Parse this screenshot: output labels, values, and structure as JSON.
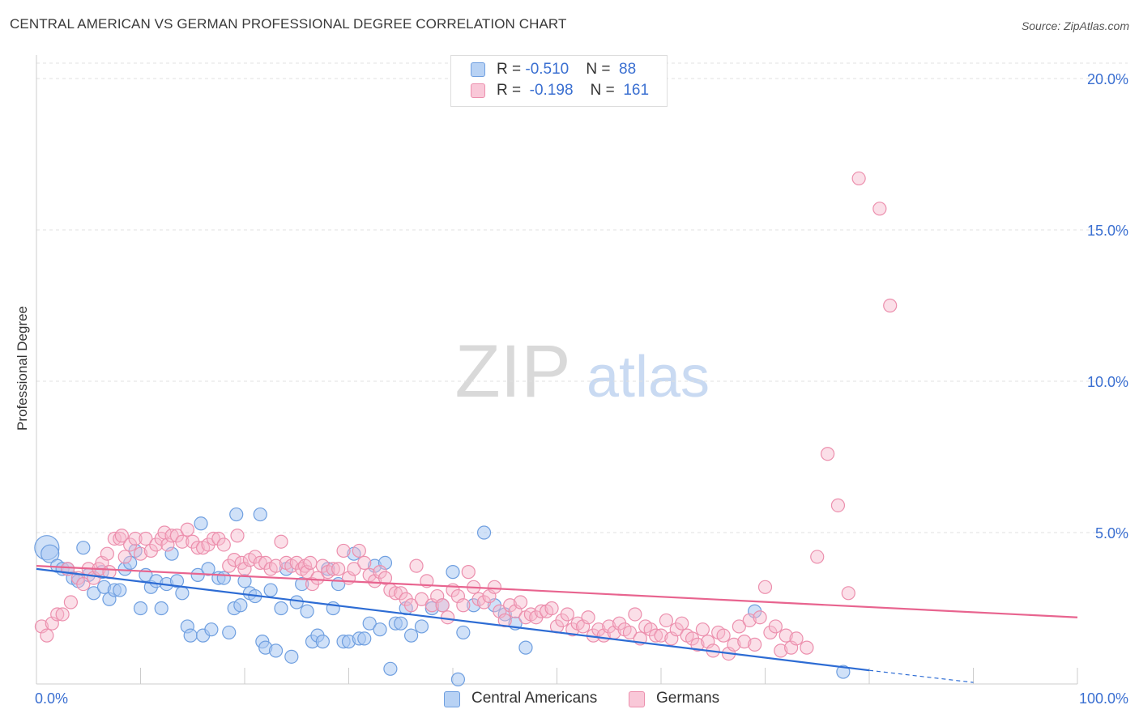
{
  "header": {
    "title": "CENTRAL AMERICAN VS GERMAN PROFESSIONAL DEGREE CORRELATION CHART",
    "source": "Source: ZipAtlas.com"
  },
  "watermark": {
    "zip": "ZIP",
    "atlas": "atlas"
  },
  "legend": {
    "items": [
      {
        "r_label": "R = ",
        "r_value": "-0.510",
        "n_label": "N = ",
        "n_value": "88"
      },
      {
        "r_label": "R = ",
        "r_value": "-0.198",
        "n_label": "N = ",
        "n_value": "161"
      }
    ]
  },
  "colors": {
    "blue_fill": "#a9c8f2",
    "blue_stroke": "#6f9fe0",
    "blue_line": "#2d6cd4",
    "pink_fill": "#f6b9cc",
    "pink_stroke": "#ec8fad",
    "pink_line": "#e8648f",
    "axis_text": "#3a6fd1",
    "grid": "#e0e0e0"
  },
  "chart_data": {
    "type": "scatter",
    "title": "CENTRAL AMERICAN VS GERMAN PROFESSIONAL DEGREE CORRELATION CHART",
    "xlabel": "",
    "ylabel": "Professional Degree",
    "xlim": [
      0,
      100
    ],
    "ylim": [
      0,
      20
    ],
    "x_tick_labels": [
      "0.0%",
      "100.0%"
    ],
    "y_ticks": [
      5,
      10,
      15,
      20
    ],
    "y_tick_labels": [
      "5.0%",
      "10.0%",
      "15.0%",
      "20.0%"
    ],
    "grid": true,
    "legend_position": "bottom",
    "series": [
      {
        "name": "Central Americans",
        "R": -0.51,
        "N": 88,
        "trend": {
          "x": [
            0,
            80
          ],
          "y": [
            3.8,
            0.45
          ]
        },
        "trend_extension": {
          "x": [
            80,
            90
          ],
          "y": [
            0.45,
            0.05
          ]
        },
        "points": [
          [
            1,
            4.5
          ],
          [
            1.3,
            4.3
          ],
          [
            2,
            3.9
          ],
          [
            2.5,
            3.8
          ],
          [
            3,
            3.8
          ],
          [
            3.5,
            3.5
          ],
          [
            4,
            3.4
          ],
          [
            4.5,
            4.5
          ],
          [
            5,
            3.6
          ],
          [
            5.5,
            3.0
          ],
          [
            6.3,
            3.7
          ],
          [
            6.5,
            3.2
          ],
          [
            7,
            2.8
          ],
          [
            7.5,
            3.1
          ],
          [
            8,
            3.1
          ],
          [
            8.5,
            3.8
          ],
          [
            9,
            4.0
          ],
          [
            9.5,
            4.4
          ],
          [
            10,
            2.5
          ],
          [
            10.5,
            3.6
          ],
          [
            11,
            3.2
          ],
          [
            11.5,
            3.4
          ],
          [
            12,
            2.5
          ],
          [
            12.5,
            3.3
          ],
          [
            13,
            4.3
          ],
          [
            13.5,
            3.4
          ],
          [
            14,
            3.0
          ],
          [
            14.5,
            1.9
          ],
          [
            14.8,
            1.6
          ],
          [
            15.5,
            3.6
          ],
          [
            15.8,
            5.3
          ],
          [
            16,
            1.6
          ],
          [
            16.5,
            3.8
          ],
          [
            16.8,
            1.8
          ],
          [
            17.5,
            3.5
          ],
          [
            18,
            3.5
          ],
          [
            18.5,
            1.7
          ],
          [
            19,
            2.5
          ],
          [
            19.2,
            5.6
          ],
          [
            19.6,
            2.6
          ],
          [
            20,
            3.4
          ],
          [
            20.5,
            3.0
          ],
          [
            21,
            2.9
          ],
          [
            21.5,
            5.6
          ],
          [
            21.7,
            1.4
          ],
          [
            22,
            1.2
          ],
          [
            22.5,
            3.1
          ],
          [
            23,
            1.1
          ],
          [
            23.5,
            2.5
          ],
          [
            24,
            3.8
          ],
          [
            24.5,
            0.9
          ],
          [
            25,
            2.7
          ],
          [
            25.5,
            3.3
          ],
          [
            26,
            2.4
          ],
          [
            26.5,
            1.4
          ],
          [
            27,
            1.6
          ],
          [
            27.5,
            1.4
          ],
          [
            28,
            3.8
          ],
          [
            28.5,
            2.5
          ],
          [
            29,
            3.3
          ],
          [
            29.5,
            1.4
          ],
          [
            30,
            1.4
          ],
          [
            30.5,
            4.3
          ],
          [
            31,
            1.5
          ],
          [
            31.5,
            1.5
          ],
          [
            32,
            2.0
          ],
          [
            32.5,
            3.9
          ],
          [
            33,
            1.8
          ],
          [
            33.5,
            4.0
          ],
          [
            34,
            0.5
          ],
          [
            34.5,
            2.0
          ],
          [
            35,
            2.0
          ],
          [
            35.5,
            2.5
          ],
          [
            36,
            1.6
          ],
          [
            37,
            1.9
          ],
          [
            38,
            2.5
          ],
          [
            39,
            2.6
          ],
          [
            40,
            3.7
          ],
          [
            40.5,
            0.15
          ],
          [
            41,
            1.7
          ],
          [
            42,
            2.6
          ],
          [
            43,
            5.0
          ],
          [
            44,
            2.6
          ],
          [
            45,
            2.3
          ],
          [
            46,
            2.0
          ],
          [
            47,
            1.2
          ],
          [
            69,
            2.4
          ],
          [
            77.5,
            0.4
          ]
        ]
      },
      {
        "name": "Germans",
        "R": -0.198,
        "N": 161,
        "trend": {
          "x": [
            0,
            100
          ],
          "y": [
            3.9,
            2.2
          ]
        },
        "points": [
          [
            0.5,
            1.9
          ],
          [
            1,
            1.6
          ],
          [
            1.5,
            2.0
          ],
          [
            2,
            2.3
          ],
          [
            2.5,
            2.3
          ],
          [
            3,
            3.8
          ],
          [
            3.3,
            2.7
          ],
          [
            4,
            3.5
          ],
          [
            4.5,
            3.3
          ],
          [
            5,
            3.8
          ],
          [
            5.5,
            3.5
          ],
          [
            6,
            3.8
          ],
          [
            6.3,
            4.0
          ],
          [
            6.8,
            4.3
          ],
          [
            7,
            3.7
          ],
          [
            7.5,
            4.8
          ],
          [
            8,
            4.8
          ],
          [
            8.2,
            4.9
          ],
          [
            8.5,
            4.2
          ],
          [
            9,
            4.6
          ],
          [
            9.5,
            4.8
          ],
          [
            10,
            4.3
          ],
          [
            10.5,
            4.8
          ],
          [
            11,
            4.4
          ],
          [
            11.5,
            4.6
          ],
          [
            12,
            4.8
          ],
          [
            12.3,
            5.0
          ],
          [
            12.6,
            4.6
          ],
          [
            13,
            4.9
          ],
          [
            13.5,
            4.9
          ],
          [
            14,
            4.7
          ],
          [
            14.5,
            5.1
          ],
          [
            15,
            4.7
          ],
          [
            15.5,
            4.5
          ],
          [
            16,
            4.5
          ],
          [
            16.5,
            4.6
          ],
          [
            17,
            4.8
          ],
          [
            17.5,
            4.8
          ],
          [
            18,
            4.6
          ],
          [
            18.5,
            3.9
          ],
          [
            19,
            4.1
          ],
          [
            19.3,
            4.9
          ],
          [
            19.7,
            4.0
          ],
          [
            20,
            3.8
          ],
          [
            20.5,
            4.1
          ],
          [
            21,
            4.2
          ],
          [
            21.5,
            4.0
          ],
          [
            22,
            4.0
          ],
          [
            22.5,
            3.8
          ],
          [
            23,
            3.9
          ],
          [
            23.5,
            4.7
          ],
          [
            24,
            4.0
          ],
          [
            24.5,
            3.9
          ],
          [
            25,
            4.0
          ],
          [
            25.5,
            3.8
          ],
          [
            25.8,
            3.9
          ],
          [
            26,
            3.7
          ],
          [
            26.3,
            4.0
          ],
          [
            26.5,
            3.3
          ],
          [
            27,
            3.5
          ],
          [
            27.5,
            3.9
          ],
          [
            28,
            3.7
          ],
          [
            28.5,
            3.8
          ],
          [
            29,
            3.8
          ],
          [
            29.5,
            4.4
          ],
          [
            30,
            3.5
          ],
          [
            30.5,
            3.8
          ],
          [
            31,
            4.4
          ],
          [
            31.5,
            4.0
          ],
          [
            32,
            3.6
          ],
          [
            32.5,
            3.4
          ],
          [
            33,
            3.7
          ],
          [
            33.5,
            3.5
          ],
          [
            34,
            3.1
          ],
          [
            34.5,
            3.0
          ],
          [
            35,
            3.0
          ],
          [
            35.5,
            2.8
          ],
          [
            36,
            2.6
          ],
          [
            36.5,
            3.9
          ],
          [
            37,
            2.8
          ],
          [
            37.5,
            3.4
          ],
          [
            38,
            2.6
          ],
          [
            38.5,
            2.9
          ],
          [
            39,
            2.6
          ],
          [
            39.5,
            2.2
          ],
          [
            40,
            3.1
          ],
          [
            40.5,
            2.9
          ],
          [
            41,
            2.6
          ],
          [
            41.5,
            3.7
          ],
          [
            42,
            3.2
          ],
          [
            42.5,
            2.8
          ],
          [
            43,
            2.7
          ],
          [
            43.5,
            2.9
          ],
          [
            44,
            3.2
          ],
          [
            44.5,
            2.4
          ],
          [
            45,
            2.1
          ],
          [
            45.5,
            2.6
          ],
          [
            46,
            2.4
          ],
          [
            46.5,
            2.7
          ],
          [
            47,
            2.2
          ],
          [
            47.5,
            2.3
          ],
          [
            48,
            2.2
          ],
          [
            48.5,
            2.4
          ],
          [
            49,
            2.4
          ],
          [
            49.5,
            2.5
          ],
          [
            50,
            1.9
          ],
          [
            50.5,
            2.1
          ],
          [
            51,
            2.3
          ],
          [
            51.5,
            1.8
          ],
          [
            52,
            2.0
          ],
          [
            52.5,
            1.9
          ],
          [
            53,
            2.2
          ],
          [
            53.5,
            1.6
          ],
          [
            54,
            1.8
          ],
          [
            54.5,
            1.6
          ],
          [
            55,
            1.9
          ],
          [
            55.5,
            1.7
          ],
          [
            56,
            2.0
          ],
          [
            56.5,
            1.8
          ],
          [
            57,
            1.7
          ],
          [
            57.5,
            2.3
          ],
          [
            58,
            1.5
          ],
          [
            58.5,
            1.9
          ],
          [
            59,
            1.8
          ],
          [
            59.5,
            1.6
          ],
          [
            60,
            1.6
          ],
          [
            60.5,
            2.1
          ],
          [
            61,
            1.5
          ],
          [
            61.5,
            1.8
          ],
          [
            62,
            2.0
          ],
          [
            62.5,
            1.6
          ],
          [
            63,
            1.5
          ],
          [
            63.5,
            1.3
          ],
          [
            64,
            1.8
          ],
          [
            64.5,
            1.4
          ],
          [
            65,
            1.1
          ],
          [
            65.5,
            1.7
          ],
          [
            66,
            1.6
          ],
          [
            66.5,
            1.0
          ],
          [
            67,
            1.3
          ],
          [
            67.5,
            1.9
          ],
          [
            68,
            1.4
          ],
          [
            68.5,
            2.1
          ],
          [
            69,
            1.3
          ],
          [
            69.5,
            2.2
          ],
          [
            70,
            3.2
          ],
          [
            70.5,
            1.7
          ],
          [
            71,
            1.9
          ],
          [
            71.5,
            1.1
          ],
          [
            72,
            1.6
          ],
          [
            72.5,
            1.2
          ],
          [
            73,
            1.5
          ],
          [
            74,
            1.2
          ],
          [
            75,
            4.2
          ],
          [
            76,
            7.6
          ],
          [
            77,
            5.9
          ],
          [
            78,
            3.0
          ],
          [
            79,
            16.7
          ],
          [
            81,
            15.7
          ],
          [
            82,
            12.5
          ]
        ]
      }
    ]
  },
  "bottom_legend": {
    "items": [
      {
        "label": "Central Americans"
      },
      {
        "label": "Germans"
      }
    ]
  }
}
